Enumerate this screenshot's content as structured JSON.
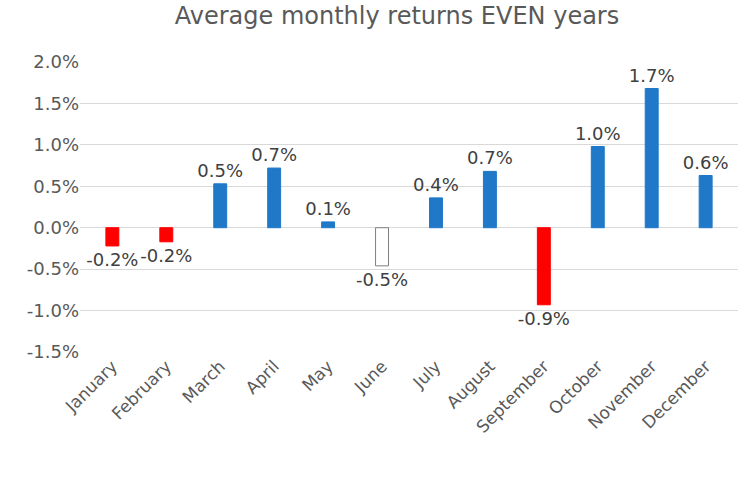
{
  "chart_data": {
    "type": "bar",
    "title": "Average monthly returns EVEN years",
    "categories": [
      "January",
      "February",
      "March",
      "April",
      "May",
      "June",
      "July",
      "August",
      "September",
      "October",
      "November",
      "December"
    ],
    "values": [
      -0.22,
      -0.17,
      0.53,
      0.72,
      0.07,
      -0.46,
      0.36,
      0.68,
      -0.93,
      0.98,
      1.68,
      0.63
    ],
    "value_labels": [
      "-0.2%",
      "-0.2%",
      "0.5%",
      "0.7%",
      "0.1%",
      "-0.5%",
      "0.4%",
      "0.7%",
      "-0.9%",
      "1.0%",
      "1.7%",
      "0.6%"
    ],
    "colors": [
      "#ff0000",
      "#ff0000",
      "#1f78c8",
      "#1f78c8",
      "#1f78c8",
      "#ffffff",
      "#1f78c8",
      "#1f78c8",
      "#ff0000",
      "#1f78c8",
      "#1f78c8",
      "#1f78c8"
    ],
    "data_labels": true,
    "ylim": [
      -1.5,
      2.0
    ],
    "yticks": [
      {
        "value": -1.5,
        "label": "-1.5%"
      },
      {
        "value": -1.0,
        "label": "-1.0%"
      },
      {
        "value": -0.5,
        "label": "-0.5%"
      },
      {
        "value": 0.0,
        "label": "0.0%"
      },
      {
        "value": 0.5,
        "label": "0.5%"
      },
      {
        "value": 1.0,
        "label": "1.0%"
      },
      {
        "value": 1.5,
        "label": "1.5%"
      },
      {
        "value": 2.0,
        "label": "2.0%"
      }
    ],
    "grid": true
  }
}
